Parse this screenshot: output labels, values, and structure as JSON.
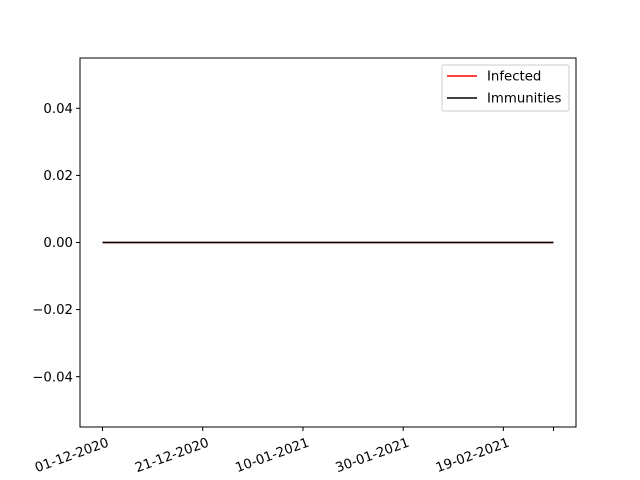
{
  "chart_data": {
    "type": "line",
    "title": "",
    "xlabel": "",
    "ylabel": "",
    "x_dates": [
      "01-12-2020",
      "04-12-2020",
      "07-12-2020",
      "10-12-2020",
      "13-12-2020",
      "16-12-2020",
      "19-12-2020",
      "22-12-2020",
      "25-12-2020",
      "28-12-2020",
      "31-12-2020",
      "03-01-2021",
      "06-01-2021",
      "09-01-2021",
      "12-01-2021",
      "15-01-2021",
      "18-01-2021",
      "21-01-2021",
      "24-01-2021",
      "27-01-2021",
      "30-01-2021",
      "02-02-2021",
      "05-02-2021",
      "08-02-2021",
      "11-02-2021",
      "14-02-2021",
      "17-02-2021",
      "20-02-2021",
      "23-02-2021",
      "26-02-2021",
      "01-03-2021"
    ],
    "series": [
      {
        "name": "Infected",
        "color": "#ff0000",
        "values": [
          0,
          0,
          0,
          0,
          0,
          0,
          0,
          0,
          0,
          0,
          0,
          0,
          0,
          0,
          0,
          0,
          0,
          0,
          0,
          0,
          0,
          0,
          0,
          0,
          0,
          0,
          0,
          0,
          0,
          0,
          0
        ]
      },
      {
        "name": "Immunities",
        "color": "#000000",
        "values": [
          0,
          0,
          0,
          0,
          0,
          0,
          0,
          0,
          0,
          0,
          0,
          0,
          0,
          0,
          0,
          0,
          0,
          0,
          0,
          0,
          0,
          0,
          0,
          0,
          0,
          0,
          0,
          0,
          0,
          0,
          0
        ]
      }
    ],
    "xlim": [
      "01-12-2020",
      "01-03-2021"
    ],
    "ylim": [
      -0.055,
      0.055
    ],
    "x_tick_labels": [
      "01-12-2020",
      "21-12-2020",
      "10-01-2021",
      "30-01-2021",
      "19-02-2021"
    ],
    "x_tick_extra": "01-03-2021",
    "y_ticks": [
      -0.04,
      -0.02,
      0.0,
      0.02,
      0.04
    ],
    "y_tick_labels": [
      "−0.04",
      "−0.02",
      "0.00",
      "0.02",
      "0.04"
    ],
    "grid": false,
    "legend_position": "upper right"
  }
}
